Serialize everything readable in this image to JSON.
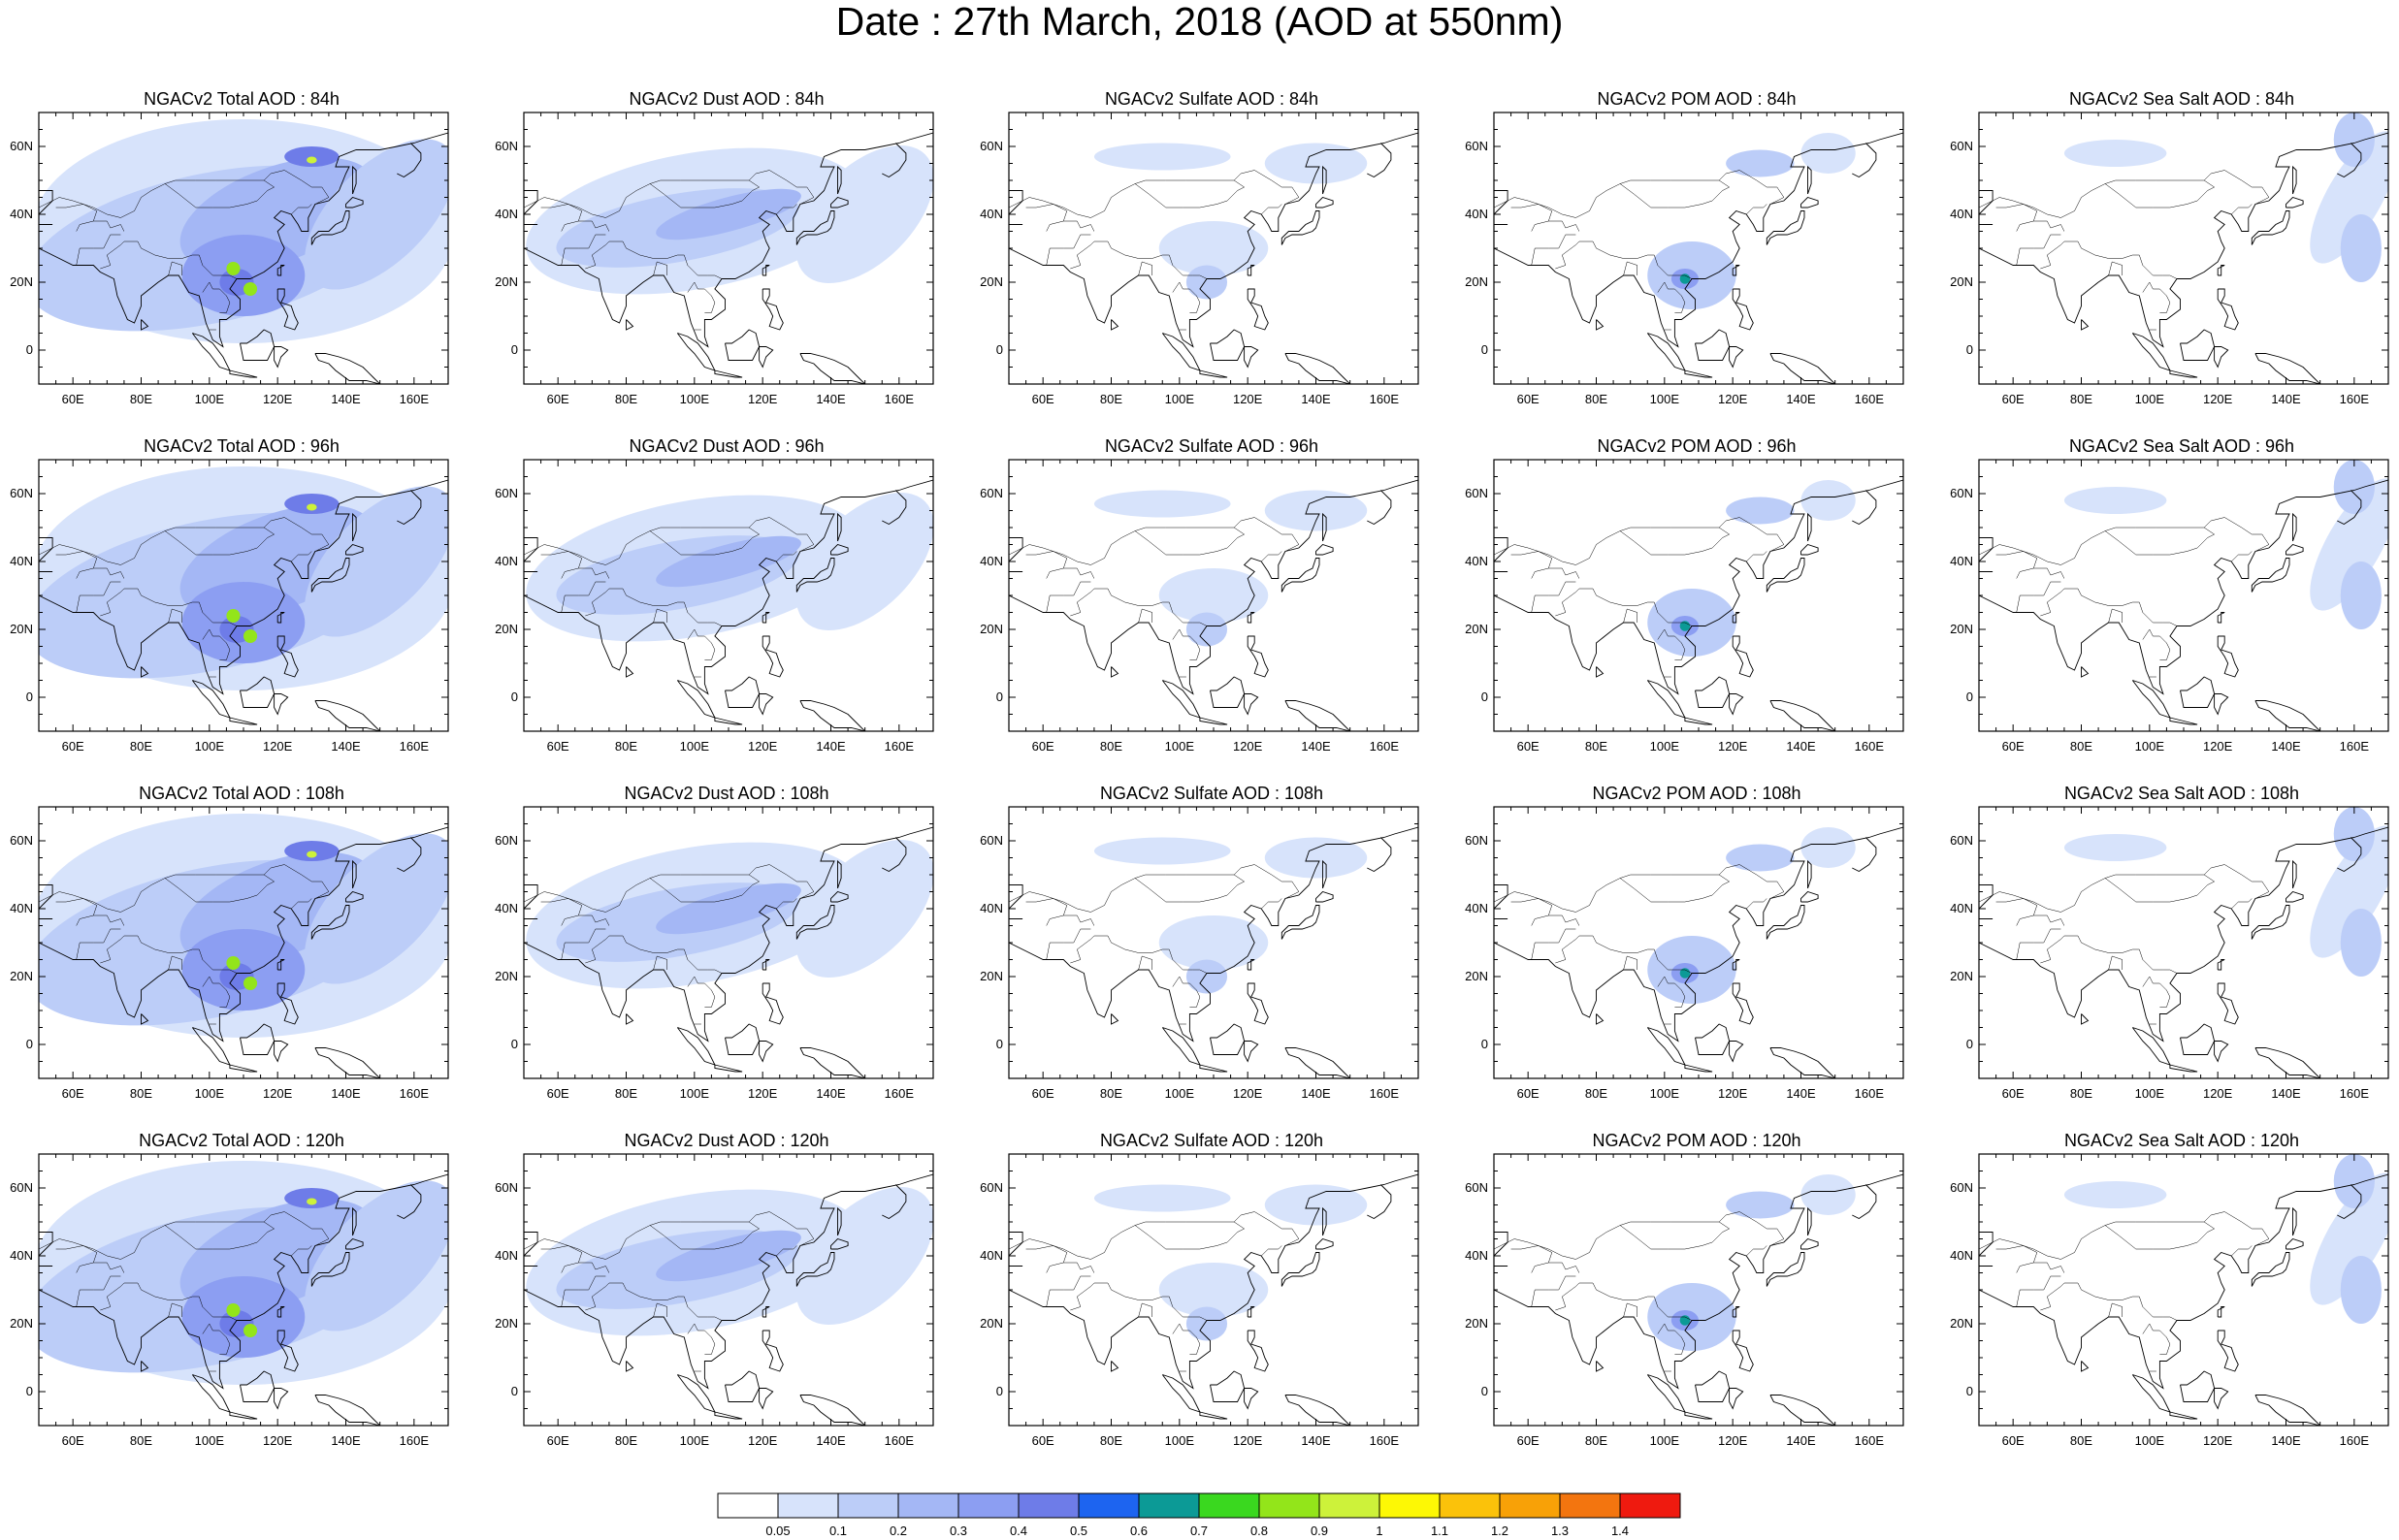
{
  "title": "Date : 27th March, 2018 (AOD at 550nm)",
  "map": {
    "lon_ticks": [
      "60E",
      "80E",
      "100E",
      "120E",
      "140E",
      "160E"
    ],
    "lat_ticks": [
      "60N",
      "40N",
      "20N",
      "0"
    ],
    "lon_range": [
      50,
      170
    ],
    "lat_range": [
      -10,
      70
    ]
  },
  "rows": [
    {
      "lead": "84h",
      "titles": [
        "NGACv2 Total AOD : 84h",
        "NGACv2 Dust AOD : 84h",
        "NGACv2 Sulfate AOD : 84h",
        "NGACv2 POM AOD : 84h",
        "NGACv2 Sea Salt AOD : 84h"
      ]
    },
    {
      "lead": "96h",
      "titles": [
        "NGACv2 Total AOD : 96h",
        "NGACv2 Dust AOD : 96h",
        "NGACv2 Sulfate AOD : 96h",
        "NGACv2 POM AOD : 96h",
        "NGACv2 Sea Salt AOD : 96h"
      ]
    },
    {
      "lead": "108h",
      "titles": [
        "NGACv2 Total AOD : 108h",
        "NGACv2 Dust AOD : 108h",
        "NGACv2 Sulfate AOD : 108h",
        "NGACv2 POM AOD : 108h",
        "NGACv2 Sea Salt AOD : 108h"
      ]
    },
    {
      "lead": "120h",
      "titles": [
        "NGACv2 Total AOD : 120h",
        "NGACv2 Dust AOD : 120h",
        "NGACv2 Sulfate AOD : 120h",
        "NGACv2 POM AOD : 120h",
        "NGACv2 Sea Salt  AOD : 120h"
      ]
    }
  ],
  "colorbar": {
    "labels": [
      "0.05",
      "0.1",
      "0.2",
      "0.3",
      "0.4",
      "0.5",
      "0.6",
      "0.7",
      "0.8",
      "0.9",
      "1",
      "1.1",
      "1.2",
      "1.3",
      "1.4"
    ],
    "colors": [
      "#ffffff",
      "#d7e3fb",
      "#bccdf8",
      "#a4b7f5",
      "#8c9ef2",
      "#6e7ce8",
      "#1d64f0",
      "#0c9a96",
      "#3ad81f",
      "#93e51a",
      "#cdf23a",
      "#fdf805",
      "#fbc20a",
      "#f8a107",
      "#f3750f",
      "#ef1a0f"
    ]
  }
}
